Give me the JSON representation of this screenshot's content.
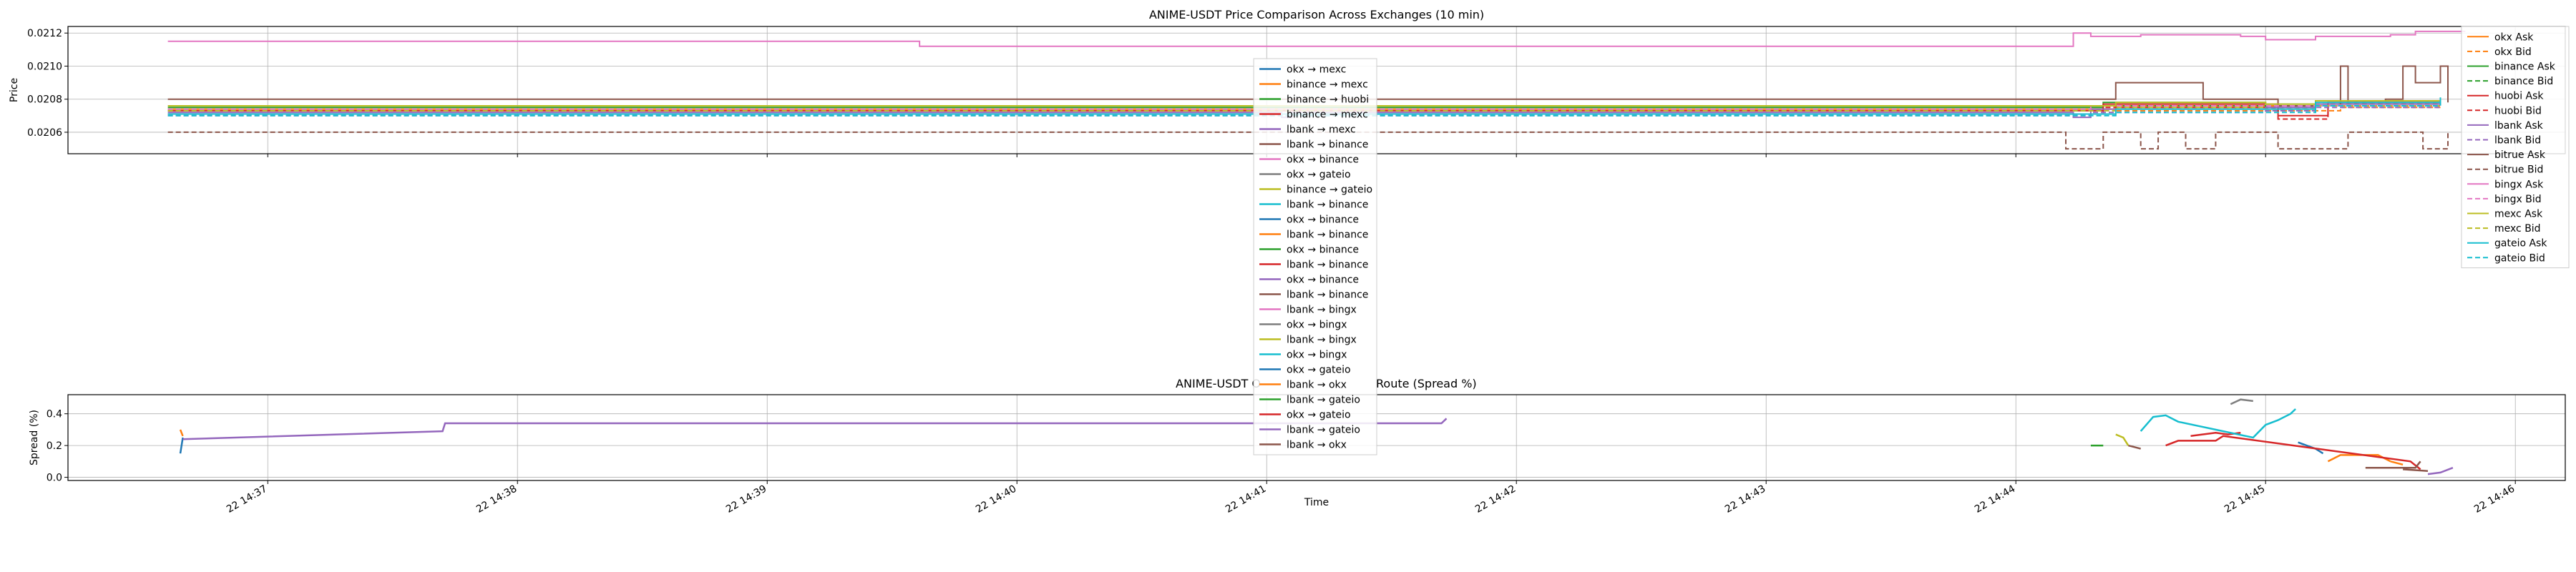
{
  "colors": {
    "okx": "#ff7f0e",
    "binance": "#2ca02c",
    "huobi": "#d62728",
    "lbank": "#9467bd",
    "bitrue": "#8c564b",
    "bingx": "#e377c2",
    "mexc": "#bcbd22",
    "gateio": "#17becf",
    "route": [
      "#1f77b4",
      "#ff7f0e",
      "#2ca02c",
      "#d62728",
      "#9467bd",
      "#8c564b",
      "#e377c2",
      "#7f7f7f",
      "#bcbd22",
      "#17becf"
    ]
  },
  "time_ticks": [
    {
      "t": 37,
      "label": "22 14:37"
    },
    {
      "t": 38,
      "label": "22 14:38"
    },
    {
      "t": 39,
      "label": "22 14:39"
    },
    {
      "t": 40,
      "label": "22 14:40"
    },
    {
      "t": 41,
      "label": "22 14:41"
    },
    {
      "t": 42,
      "label": "22 14:42"
    },
    {
      "t": 43,
      "label": "22 14:43"
    },
    {
      "t": 44,
      "label": "22 14:44"
    },
    {
      "t": 45,
      "label": "22 14:45"
    },
    {
      "t": 46,
      "label": "22 14:46"
    }
  ],
  "chart_data": [
    {
      "type": "line",
      "title": "ANIME-USDT Price Comparison Across Exchanges (10 min)",
      "xlabel": "",
      "ylabel": "Price",
      "x_unit": "minutes past 14:00 on day 22",
      "xlim": [
        36.2,
        46.2
      ],
      "ylim": [
        0.02047,
        0.02124
      ],
      "yticks": [
        "0.0206",
        "0.0208",
        "0.0210",
        "0.0212"
      ],
      "ytick_values": [
        0.0206,
        0.0208,
        0.021,
        0.0212
      ],
      "grid": true,
      "legend_position": "right, outside plot",
      "series": [
        {
          "name": "okx Ask",
          "exchange": "okx",
          "style": "solid",
          "points": [
            [
              36.6,
              0.02074
            ],
            [
              44.2,
              0.02074
            ],
            [
              44.4,
              0.02076
            ],
            [
              45.0,
              0.02076
            ],
            [
              45.3,
              0.02078
            ],
            [
              45.7,
              0.02078
            ]
          ]
        },
        {
          "name": "okx Bid",
          "exchange": "okx",
          "style": "dashed",
          "points": [
            [
              36.6,
              0.02071
            ],
            [
              44.2,
              0.02071
            ],
            [
              44.4,
              0.02073
            ],
            [
              45.0,
              0.02073
            ],
            [
              45.3,
              0.02075
            ],
            [
              45.7,
              0.02075
            ]
          ]
        },
        {
          "name": "binance Ask",
          "exchange": "binance",
          "style": "solid",
          "points": [
            [
              36.6,
              0.02075
            ],
            [
              44.2,
              0.02075
            ],
            [
              44.35,
              0.02078
            ],
            [
              45.0,
              0.02077
            ],
            [
              45.2,
              0.02079
            ],
            [
              45.7,
              0.02081
            ]
          ]
        },
        {
          "name": "binance Bid",
          "exchange": "binance",
          "style": "dashed",
          "points": [
            [
              36.6,
              0.02073
            ],
            [
              44.2,
              0.02073
            ],
            [
              44.35,
              0.02076
            ],
            [
              45.0,
              0.02075
            ],
            [
              45.2,
              0.02077
            ],
            [
              45.7,
              0.02079
            ]
          ]
        },
        {
          "name": "huobi Ask",
          "exchange": "huobi",
          "style": "solid",
          "points": [
            [
              36.6,
              0.02073
            ],
            [
              44.3,
              0.02073
            ],
            [
              44.35,
              0.02077
            ],
            [
              45.0,
              0.02077
            ],
            [
              45.05,
              0.0207
            ],
            [
              45.2,
              0.0207
            ],
            [
              45.25,
              0.02078
            ],
            [
              45.7,
              0.02079
            ]
          ]
        },
        {
          "name": "huobi Bid",
          "exchange": "huobi",
          "style": "dashed",
          "points": [
            [
              36.6,
              0.02071
            ],
            [
              44.3,
              0.02071
            ],
            [
              44.35,
              0.02075
            ],
            [
              45.0,
              0.02075
            ],
            [
              45.05,
              0.02068
            ],
            [
              45.2,
              0.02068
            ],
            [
              45.25,
              0.02076
            ],
            [
              45.7,
              0.02077
            ]
          ]
        },
        {
          "name": "lbank Ask",
          "exchange": "lbank",
          "style": "solid",
          "points": [
            [
              36.6,
              0.02072
            ],
            [
              41.05,
              0.02072
            ],
            [
              41.06,
              0.02069
            ],
            [
              41.1,
              0.02072
            ],
            [
              44.22,
              0.02072
            ],
            [
              44.23,
              0.02069
            ],
            [
              44.3,
              0.02074
            ],
            [
              45.0,
              0.02075
            ],
            [
              45.2,
              0.02077
            ],
            [
              45.7,
              0.02078
            ]
          ]
        },
        {
          "name": "lbank Bid",
          "exchange": "lbank",
          "style": "dashed",
          "points": [
            [
              36.6,
              0.0207
            ],
            [
              44.25,
              0.0207
            ],
            [
              44.3,
              0.02072
            ],
            [
              45.0,
              0.02073
            ],
            [
              45.2,
              0.02075
            ],
            [
              45.7,
              0.02076
            ]
          ]
        },
        {
          "name": "bitrue Ask",
          "exchange": "bitrue",
          "style": "solid",
          "points": [
            [
              36.6,
              0.0208
            ],
            [
              44.2,
              0.0208
            ],
            [
              44.4,
              0.0209
            ],
            [
              44.7,
              0.0209
            ],
            [
              44.75,
              0.0208
            ],
            [
              45.0,
              0.0208
            ],
            [
              45.05,
              0.02076
            ],
            [
              45.2,
              0.02076
            ],
            [
              45.3,
              0.021
            ],
            [
              45.33,
              0.02078
            ],
            [
              45.48,
              0.0208
            ],
            [
              45.55,
              0.021
            ],
            [
              45.6,
              0.0209
            ],
            [
              45.65,
              0.0209
            ],
            [
              45.7,
              0.021
            ],
            [
              45.73,
              0.02078
            ]
          ]
        },
        {
          "name": "bitrue Bid",
          "exchange": "bitrue",
          "style": "dashed",
          "points": [
            [
              36.6,
              0.0206
            ],
            [
              44.2,
              0.0205
            ],
            [
              44.35,
              0.0206
            ],
            [
              44.45,
              0.0206
            ],
            [
              44.5,
              0.0205
            ],
            [
              44.57,
              0.0206
            ],
            [
              44.63,
              0.0206
            ],
            [
              44.68,
              0.0205
            ],
            [
              44.75,
              0.0205
            ],
            [
              44.8,
              0.0206
            ],
            [
              45.0,
              0.0206
            ],
            [
              45.05,
              0.0205
            ],
            [
              45.3,
              0.0205
            ],
            [
              45.33,
              0.0206
            ],
            [
              45.6,
              0.0206
            ],
            [
              45.63,
              0.0205
            ],
            [
              45.7,
              0.0205
            ],
            [
              45.73,
              0.0206
            ]
          ]
        },
        {
          "name": "bingx Ask",
          "exchange": "bingx",
          "style": "solid",
          "points": [
            [
              36.6,
              0.02115
            ],
            [
              39.6,
              0.02115
            ],
            [
              39.61,
              0.02112
            ],
            [
              44.22,
              0.02112
            ],
            [
              44.23,
              0.0212
            ],
            [
              44.3,
              0.02118
            ],
            [
              44.5,
              0.02119
            ],
            [
              44.9,
              0.02118
            ],
            [
              45.0,
              0.02116
            ],
            [
              45.2,
              0.02118
            ],
            [
              45.5,
              0.02119
            ],
            [
              45.6,
              0.02121
            ],
            [
              45.8,
              0.02121
            ]
          ]
        },
        {
          "name": "bingx Bid",
          "exchange": "bingx",
          "style": "dashed",
          "points": [
            [
              36.6,
              0.02074
            ],
            [
              44.25,
              0.02074
            ],
            [
              44.3,
              0.02076
            ],
            [
              45.0,
              0.02076
            ],
            [
              45.3,
              0.02078
            ],
            [
              45.7,
              0.02078
            ]
          ]
        },
        {
          "name": "mexc Ask",
          "exchange": "mexc",
          "style": "solid",
          "points": [
            [
              36.6,
              0.02076
            ],
            [
              44.2,
              0.02076
            ],
            [
              44.4,
              0.02078
            ],
            [
              45.0,
              0.02077
            ],
            [
              45.2,
              0.02079
            ],
            [
              45.7,
              0.0208
            ]
          ]
        },
        {
          "name": "mexc Bid",
          "exchange": "mexc",
          "style": "dashed",
          "points": [
            [
              36.6,
              0.02073
            ],
            [
              44.2,
              0.02073
            ],
            [
              44.4,
              0.02075
            ],
            [
              45.0,
              0.02074
            ],
            [
              45.2,
              0.02076
            ],
            [
              45.7,
              0.02077
            ]
          ]
        },
        {
          "name": "gateio Ask",
          "exchange": "gateio",
          "style": "solid",
          "points": [
            [
              36.6,
              0.02071
            ],
            [
              44.2,
              0.02071
            ],
            [
              44.4,
              0.02074
            ],
            [
              45.0,
              0.02074
            ],
            [
              45.2,
              0.02078
            ],
            [
              45.7,
              0.02081
            ]
          ]
        },
        {
          "name": "gateio Bid",
          "exchange": "gateio",
          "style": "dashed",
          "points": [
            [
              36.6,
              0.0207
            ],
            [
              44.2,
              0.0207
            ],
            [
              44.4,
              0.02072
            ],
            [
              45.0,
              0.02072
            ],
            [
              45.2,
              0.02076
            ],
            [
              45.7,
              0.02079
            ]
          ]
        }
      ]
    },
    {
      "type": "line",
      "title_left": "ANIME-USDT O",
      "title_right": "Route (Spread %)",
      "xlabel": "Time",
      "ylabel": "Spread (%)",
      "xlim": [
        36.2,
        46.2
      ],
      "ylim": [
        -0.02,
        0.52
      ],
      "yticks": [
        "0.0",
        "0.2",
        "0.4"
      ],
      "ytick_values": [
        0.0,
        0.2,
        0.4
      ],
      "grid": true,
      "legend_position": "upper center, overlapping",
      "series": [
        {
          "name": "okx → mexc",
          "points": [
            [
              36.65,
              0.15
            ],
            [
              36.66,
              0.25
            ]
          ]
        },
        {
          "name": "binance → mexc",
          "points": [
            [
              36.65,
              0.3
            ],
            [
              36.66,
              0.26
            ]
          ]
        },
        {
          "name": "binance → huobi",
          "points": [
            [
              44.3,
              0.2
            ],
            [
              44.35,
              0.2
            ]
          ]
        },
        {
          "name": "binance → mexc",
          "points": [
            [
              44.7,
              0.26
            ],
            [
              44.8,
              0.28
            ],
            [
              44.85,
              0.27
            ],
            [
              44.9,
              0.28
            ]
          ]
        },
        {
          "name": "lbank → mexc",
          "points": [
            [
              36.66,
              0.24
            ],
            [
              37.7,
              0.29
            ],
            [
              37.71,
              0.34
            ],
            [
              41.7,
              0.34
            ],
            [
              41.72,
              0.37
            ]
          ]
        },
        {
          "name": "lbank → binance",
          "points": [
            [
              44.45,
              0.2
            ],
            [
              44.5,
              0.18
            ]
          ]
        },
        {
          "name": "okx → binance",
          "points": []
        },
        {
          "name": "okx → gateio",
          "points": [
            [
              44.86,
              0.46
            ],
            [
              44.9,
              0.49
            ],
            [
              44.95,
              0.48
            ]
          ]
        },
        {
          "name": "binance → gateio",
          "points": [
            [
              44.4,
              0.27
            ],
            [
              44.43,
              0.25
            ],
            [
              44.45,
              0.2
            ]
          ]
        },
        {
          "name": "lbank → binance",
          "points": [
            [
              44.5,
              0.29
            ],
            [
              44.55,
              0.38
            ],
            [
              44.6,
              0.39
            ],
            [
              44.65,
              0.35
            ],
            [
              44.95,
              0.25
            ],
            [
              45.0,
              0.33
            ],
            [
              45.05,
              0.36
            ],
            [
              45.1,
              0.4
            ],
            [
              45.12,
              0.43
            ]
          ]
        },
        {
          "name": "okx → binance",
          "points": [
            [
              45.13,
              0.22
            ],
            [
              45.2,
              0.18
            ],
            [
              45.23,
              0.15
            ]
          ]
        },
        {
          "name": "lbank → binance",
          "points": [
            [
              45.25,
              0.1
            ],
            [
              45.3,
              0.14
            ],
            [
              45.45,
              0.14
            ],
            [
              45.5,
              0.1
            ]
          ]
        },
        {
          "name": "okx → binance",
          "points": []
        },
        {
          "name": "lbank → binance",
          "points": [
            [
              44.6,
              0.2
            ],
            [
              44.65,
              0.23
            ],
            [
              44.8,
              0.23
            ],
            [
              44.83,
              0.26
            ],
            [
              45.58,
              0.1
            ],
            [
              45.62,
              0.05
            ]
          ]
        },
        {
          "name": "okx → binance",
          "points": [
            [
              45.65,
              0.02
            ],
            [
              45.7,
              0.03
            ],
            [
              45.75,
              0.06
            ]
          ]
        },
        {
          "name": "lbank → binance",
          "points": [
            [
              45.4,
              0.06
            ],
            [
              45.5,
              0.06
            ],
            [
              45.6,
              0.06
            ],
            [
              45.62,
              0.1
            ]
          ]
        },
        {
          "name": "lbank → bingx",
          "points": []
        },
        {
          "name": "okx → bingx",
          "points": []
        },
        {
          "name": "lbank → bingx",
          "points": []
        },
        {
          "name": "okx → bingx",
          "points": []
        },
        {
          "name": "okx → gateio",
          "points": []
        },
        {
          "name": "lbank → okx",
          "points": [
            [
              45.5,
              0.1
            ],
            [
              45.55,
              0.08
            ]
          ]
        },
        {
          "name": "lbank → gateio",
          "points": []
        },
        {
          "name": "okx → gateio",
          "points": []
        },
        {
          "name": "lbank → gateio",
          "points": []
        },
        {
          "name": "lbank → okx",
          "points": [
            [
              45.55,
              0.05
            ],
            [
              45.65,
              0.04
            ]
          ]
        }
      ]
    }
  ]
}
